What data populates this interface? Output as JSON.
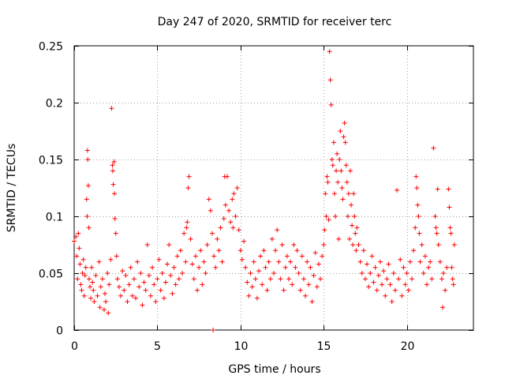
{
  "chart_data": {
    "type": "scatter",
    "title": "Day 247 of 2020, SRMTID for receiver terc",
    "xlabel": "GPS time / hours",
    "ylabel": "SRMTID / TECUs",
    "xlim": [
      0,
      24
    ],
    "ylim": [
      0,
      0.25
    ],
    "x_ticks": [
      0,
      5,
      10,
      15,
      20
    ],
    "x_tick_labels": [
      "0",
      "5",
      "10",
      "15",
      "20"
    ],
    "y_ticks": [
      0,
      0.05,
      0.1,
      0.15,
      0.2,
      0.25
    ],
    "y_tick_labels": [
      "0",
      "0.05",
      "0.1",
      "0.15",
      "0.2",
      "0.25"
    ],
    "grid": true,
    "marker": "+",
    "color": "#ff0000",
    "series": [
      {
        "name": "SRMTID",
        "points": [
          [
            0.0,
            0.078
          ],
          [
            0.1,
            0.082
          ],
          [
            0.15,
            0.065
          ],
          [
            0.2,
            0.045
          ],
          [
            0.25,
            0.085
          ],
          [
            0.3,
            0.072
          ],
          [
            0.35,
            0.058
          ],
          [
            0.4,
            0.04
          ],
          [
            0.45,
            0.035
          ],
          [
            0.5,
            0.05
          ],
          [
            0.55,
            0.062
          ],
          [
            0.6,
            0.03
          ],
          [
            0.65,
            0.048
          ],
          [
            0.7,
            0.055
          ],
          [
            0.75,
            0.115
          ],
          [
            0.78,
            0.1
          ],
          [
            0.8,
            0.158
          ],
          [
            0.82,
            0.15
          ],
          [
            0.85,
            0.127
          ],
          [
            0.88,
            0.09
          ],
          [
            0.9,
            0.045
          ],
          [
            0.95,
            0.038
          ],
          [
            1.0,
            0.028
          ],
          [
            1.05,
            0.055
          ],
          [
            1.1,
            0.042
          ],
          [
            1.15,
            0.035
          ],
          [
            1.2,
            0.025
          ],
          [
            1.3,
            0.048
          ],
          [
            1.4,
            0.03
          ],
          [
            1.5,
            0.06
          ],
          [
            1.55,
            0.02
          ],
          [
            1.6,
            0.038
          ],
          [
            1.7,
            0.045
          ],
          [
            1.8,
            0.018
          ],
          [
            1.85,
            0.032
          ],
          [
            1.9,
            0.025
          ],
          [
            2.0,
            0.05
          ],
          [
            2.05,
            0.015
          ],
          [
            2.1,
            0.04
          ],
          [
            2.2,
            0.062
          ],
          [
            2.25,
            0.195
          ],
          [
            2.3,
            0.145
          ],
          [
            2.32,
            0.14
          ],
          [
            2.35,
            0.128
          ],
          [
            2.4,
            0.148
          ],
          [
            2.42,
            0.12
          ],
          [
            2.45,
            0.098
          ],
          [
            2.5,
            0.085
          ],
          [
            2.55,
            0.065
          ],
          [
            2.6,
            0.045
          ],
          [
            2.7,
            0.038
          ],
          [
            2.8,
            0.03
          ],
          [
            2.9,
            0.052
          ],
          [
            3.0,
            0.035
          ],
          [
            3.1,
            0.048
          ],
          [
            3.2,
            0.025
          ],
          [
            3.3,
            0.04
          ],
          [
            3.4,
            0.055
          ],
          [
            3.5,
            0.03
          ],
          [
            3.6,
            0.045
          ],
          [
            3.7,
            0.028
          ],
          [
            3.8,
            0.06
          ],
          [
            3.9,
            0.038
          ],
          [
            4.0,
            0.05
          ],
          [
            4.1,
            0.022
          ],
          [
            4.2,
            0.042
          ],
          [
            4.3,
            0.035
          ],
          [
            4.4,
            0.075
          ],
          [
            4.5,
            0.048
          ],
          [
            4.6,
            0.03
          ],
          [
            4.7,
            0.055
          ],
          [
            4.8,
            0.04
          ],
          [
            4.9,
            0.025
          ],
          [
            5.0,
            0.045
          ],
          [
            5.1,
            0.062
          ],
          [
            5.2,
            0.035
          ],
          [
            5.3,
            0.05
          ],
          [
            5.4,
            0.028
          ],
          [
            5.5,
            0.042
          ],
          [
            5.6,
            0.058
          ],
          [
            5.7,
            0.075
          ],
          [
            5.8,
            0.048
          ],
          [
            5.9,
            0.032
          ],
          [
            6.0,
            0.055
          ],
          [
            6.1,
            0.04
          ],
          [
            6.2,
            0.065
          ],
          [
            6.3,
            0.045
          ],
          [
            6.4,
            0.07
          ],
          [
            6.5,
            0.05
          ],
          [
            6.6,
            0.085
          ],
          [
            6.7,
            0.06
          ],
          [
            6.75,
            0.09
          ],
          [
            6.8,
            0.095
          ],
          [
            6.85,
            0.125
          ],
          [
            6.9,
            0.135
          ],
          [
            7.0,
            0.08
          ],
          [
            7.1,
            0.058
          ],
          [
            7.2,
            0.045
          ],
          [
            7.3,
            0.065
          ],
          [
            7.4,
            0.035
          ],
          [
            7.5,
            0.055
          ],
          [
            7.6,
            0.07
          ],
          [
            7.7,
            0.04
          ],
          [
            7.8,
            0.06
          ],
          [
            7.9,
            0.05
          ],
          [
            8.0,
            0.075
          ],
          [
            8.1,
            0.115
          ],
          [
            8.2,
            0.105
          ],
          [
            8.3,
            0.085
          ],
          [
            8.35,
            0.0
          ],
          [
            8.4,
            0.065
          ],
          [
            8.5,
            0.055
          ],
          [
            8.6,
            0.08
          ],
          [
            8.7,
            0.07
          ],
          [
            8.8,
            0.09
          ],
          [
            8.9,
            0.06
          ],
          [
            9.0,
            0.098
          ],
          [
            9.05,
            0.135
          ],
          [
            9.1,
            0.11
          ],
          [
            9.2,
            0.135
          ],
          [
            9.3,
            0.105
          ],
          [
            9.4,
            0.095
          ],
          [
            9.5,
            0.115
          ],
          [
            9.55,
            0.09
          ],
          [
            9.6,
            0.12
          ],
          [
            9.7,
            0.1
          ],
          [
            9.8,
            0.125
          ],
          [
            9.9,
            0.088
          ],
          [
            10.0,
            0.07
          ],
          [
            10.1,
            0.062
          ],
          [
            10.2,
            0.078
          ],
          [
            10.3,
            0.055
          ],
          [
            10.4,
            0.042
          ],
          [
            10.5,
            0.03
          ],
          [
            10.6,
            0.05
          ],
          [
            10.7,
            0.038
          ],
          [
            10.8,
            0.06
          ],
          [
            10.9,
            0.045
          ],
          [
            11.0,
            0.028
          ],
          [
            11.1,
            0.052
          ],
          [
            11.2,
            0.065
          ],
          [
            11.3,
            0.04
          ],
          [
            11.4,
            0.07
          ],
          [
            11.5,
            0.055
          ],
          [
            11.6,
            0.035
          ],
          [
            11.7,
            0.06
          ],
          [
            11.8,
            0.045
          ],
          [
            11.9,
            0.08
          ],
          [
            12.0,
            0.05
          ],
          [
            12.1,
            0.07
          ],
          [
            12.2,
            0.088
          ],
          [
            12.3,
            0.06
          ],
          [
            12.4,
            0.045
          ],
          [
            12.5,
            0.075
          ],
          [
            12.6,
            0.035
          ],
          [
            12.7,
            0.055
          ],
          [
            12.8,
            0.065
          ],
          [
            12.9,
            0.045
          ],
          [
            13.0,
            0.06
          ],
          [
            13.1,
            0.04
          ],
          [
            13.2,
            0.075
          ],
          [
            13.3,
            0.055
          ],
          [
            13.4,
            0.07
          ],
          [
            13.5,
            0.05
          ],
          [
            13.6,
            0.035
          ],
          [
            13.7,
            0.065
          ],
          [
            13.8,
            0.045
          ],
          [
            13.9,
            0.03
          ],
          [
            14.0,
            0.06
          ],
          [
            14.1,
            0.04
          ],
          [
            14.2,
            0.055
          ],
          [
            14.3,
            0.025
          ],
          [
            14.4,
            0.048
          ],
          [
            14.5,
            0.068
          ],
          [
            14.6,
            0.038
          ],
          [
            14.7,
            0.058
          ],
          [
            14.8,
            0.045
          ],
          [
            14.9,
            0.065
          ],
          [
            15.0,
            0.075
          ],
          [
            15.05,
            0.088
          ],
          [
            15.1,
            0.12
          ],
          [
            15.15,
            0.1
          ],
          [
            15.2,
            0.135
          ],
          [
            15.25,
            0.13
          ],
          [
            15.3,
            0.097
          ],
          [
            15.35,
            0.245
          ],
          [
            15.4,
            0.22
          ],
          [
            15.45,
            0.198
          ],
          [
            15.5,
            0.15
          ],
          [
            15.55,
            0.145
          ],
          [
            15.6,
            0.165
          ],
          [
            15.65,
            0.12
          ],
          [
            15.7,
            0.1
          ],
          [
            15.75,
            0.14
          ],
          [
            15.8,
            0.155
          ],
          [
            15.85,
            0.13
          ],
          [
            15.9,
            0.08
          ],
          [
            15.95,
            0.15
          ],
          [
            16.0,
            0.175
          ],
          [
            16.05,
            0.14
          ],
          [
            16.1,
            0.125
          ],
          [
            16.15,
            0.115
          ],
          [
            16.2,
            0.17
          ],
          [
            16.25,
            0.182
          ],
          [
            16.3,
            0.165
          ],
          [
            16.35,
            0.145
          ],
          [
            16.4,
            0.13
          ],
          [
            16.45,
            0.1
          ],
          [
            16.5,
            0.12
          ],
          [
            16.55,
            0.08
          ],
          [
            16.6,
            0.14
          ],
          [
            16.65,
            0.11
          ],
          [
            16.7,
            0.092
          ],
          [
            16.75,
            0.075
          ],
          [
            16.8,
            0.12
          ],
          [
            16.85,
            0.1
          ],
          [
            16.9,
            0.085
          ],
          [
            16.95,
            0.07
          ],
          [
            17.0,
            0.09
          ],
          [
            17.1,
            0.075
          ],
          [
            17.2,
            0.06
          ],
          [
            17.3,
            0.05
          ],
          [
            17.4,
            0.07
          ],
          [
            17.5,
            0.045
          ],
          [
            17.6,
            0.058
          ],
          [
            17.7,
            0.038
          ],
          [
            17.8,
            0.05
          ],
          [
            17.9,
            0.065
          ],
          [
            18.0,
            0.042
          ],
          [
            18.1,
            0.055
          ],
          [
            18.2,
            0.035
          ],
          [
            18.3,
            0.048
          ],
          [
            18.4,
            0.06
          ],
          [
            18.5,
            0.04
          ],
          [
            18.6,
            0.052
          ],
          [
            18.7,
            0.03
          ],
          [
            18.8,
            0.045
          ],
          [
            18.9,
            0.058
          ],
          [
            19.0,
            0.04
          ],
          [
            19.1,
            0.025
          ],
          [
            19.2,
            0.05
          ],
          [
            19.3,
            0.035
          ],
          [
            19.4,
            0.123
          ],
          [
            19.5,
            0.045
          ],
          [
            19.6,
            0.062
          ],
          [
            19.7,
            0.03
          ],
          [
            19.8,
            0.055
          ],
          [
            19.9,
            0.04
          ],
          [
            20.0,
            0.05
          ],
          [
            20.1,
            0.035
          ],
          [
            20.2,
            0.06
          ],
          [
            20.3,
            0.045
          ],
          [
            20.4,
            0.07
          ],
          [
            20.5,
            0.09
          ],
          [
            20.55,
            0.135
          ],
          [
            20.6,
            0.125
          ],
          [
            20.65,
            0.11
          ],
          [
            20.7,
            0.1
          ],
          [
            20.75,
            0.085
          ],
          [
            20.8,
            0.06
          ],
          [
            20.9,
            0.075
          ],
          [
            21.0,
            0.05
          ],
          [
            21.1,
            0.065
          ],
          [
            21.2,
            0.04
          ],
          [
            21.3,
            0.055
          ],
          [
            21.4,
            0.06
          ],
          [
            21.5,
            0.045
          ],
          [
            21.6,
            0.16
          ],
          [
            21.7,
            0.1
          ],
          [
            21.75,
            0.09
          ],
          [
            21.8,
            0.085
          ],
          [
            21.85,
            0.124
          ],
          [
            21.9,
            0.075
          ],
          [
            22.0,
            0.06
          ],
          [
            22.1,
            0.045
          ],
          [
            22.15,
            0.02
          ],
          [
            22.2,
            0.05
          ],
          [
            22.3,
            0.035
          ],
          [
            22.4,
            0.055
          ],
          [
            22.5,
            0.124
          ],
          [
            22.55,
            0.108
          ],
          [
            22.6,
            0.09
          ],
          [
            22.65,
            0.085
          ],
          [
            22.7,
            0.055
          ],
          [
            22.75,
            0.045
          ],
          [
            22.8,
            0.04
          ],
          [
            22.85,
            0.075
          ]
        ]
      }
    ]
  }
}
